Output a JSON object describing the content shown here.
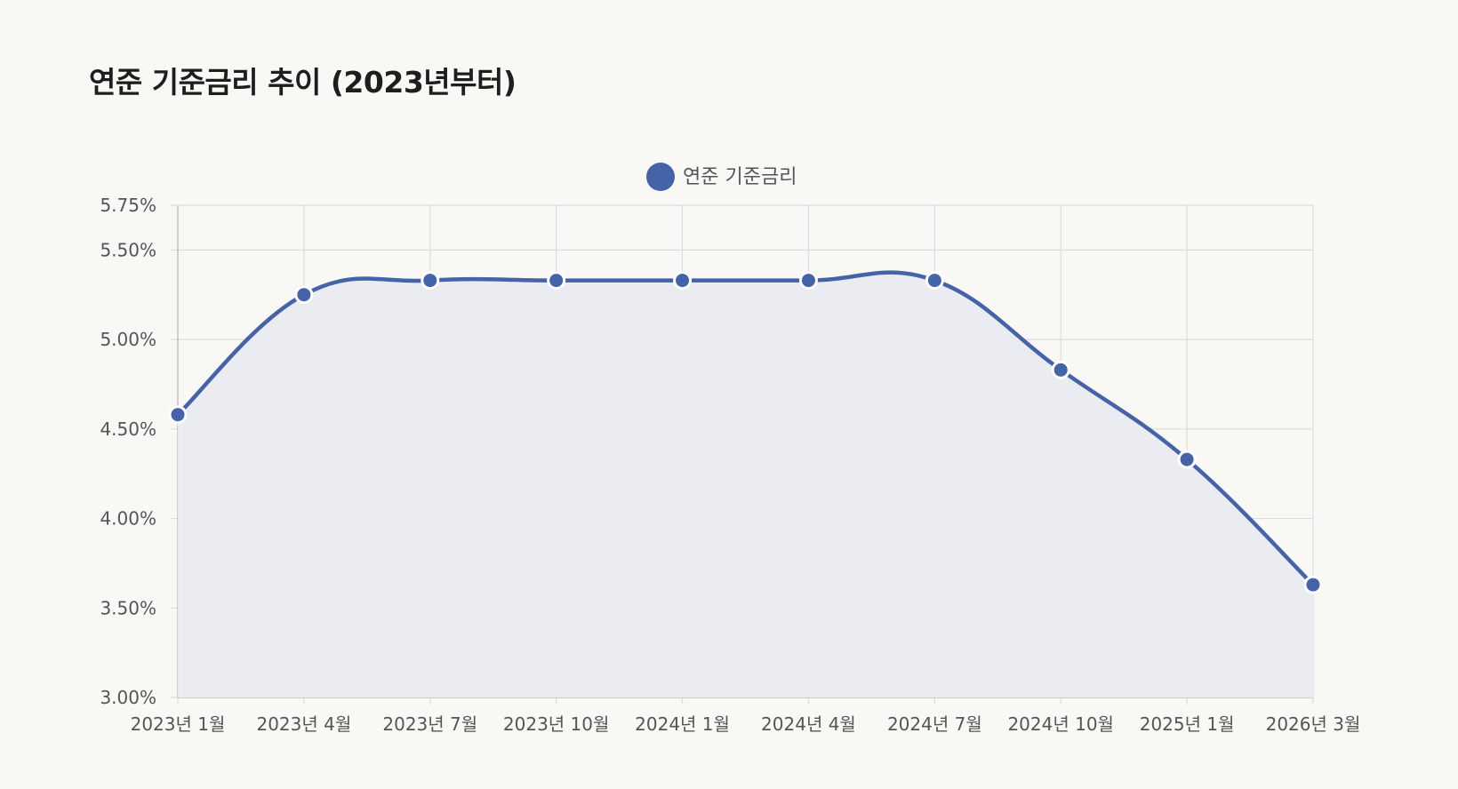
{
  "page": {
    "title": "연준 기준금리 추이 (2023년부터)"
  },
  "chart_data": {
    "type": "line",
    "title": "연준 기준금리 추이 (2023년부터)",
    "categories": [
      "2023년 1월",
      "2023년 4월",
      "2023년 7월",
      "2023년 10월",
      "2024년 1월",
      "2024년 4월",
      "2024년 7월",
      "2024년 10월",
      "2025년 1월",
      "2026년 3월"
    ],
    "series": [
      {
        "name": "연준 기준금리",
        "values": [
          4.58,
          5.25,
          5.33,
          5.33,
          5.33,
          5.33,
          5.33,
          4.83,
          4.33,
          3.63
        ],
        "color": "#4563a8",
        "fill": "#eaebf0"
      }
    ],
    "y_ticks": [
      3.0,
      3.5,
      4.0,
      4.5,
      5.0,
      5.5,
      5.75
    ],
    "y_tick_labels": [
      "3.00%",
      "3.50%",
      "4.00%",
      "4.50%",
      "5.00%",
      "5.50%",
      "5.75%"
    ],
    "ylim": [
      3.0,
      5.75
    ],
    "xlabel": "",
    "ylabel": "",
    "grid": true,
    "legend_position": "top-center",
    "area_fill": true,
    "smooth": true
  }
}
